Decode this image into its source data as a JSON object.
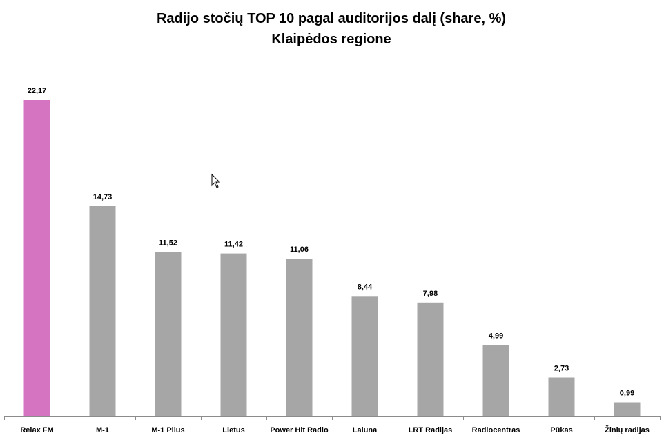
{
  "chart_data": {
    "type": "bar",
    "title": "Radijo stočių TOP 10 pagal auditorijos dalį (share, %)",
    "subtitle": "Klaipėdos regione",
    "categories": [
      "Relax FM",
      "M-1",
      "M-1 Plius",
      "Lietus",
      "Power Hit Radio",
      "Laluna",
      "LRT Radijas",
      "Radiocentras",
      "Pūkas",
      "Žinių radijas"
    ],
    "values": [
      22.17,
      14.73,
      11.52,
      11.42,
      11.06,
      8.44,
      7.98,
      4.99,
      2.73,
      0.99
    ],
    "value_labels": [
      "22,17",
      "14,73",
      "11,52",
      "11,42",
      "11,06",
      "8,44",
      "7,98",
      "4,99",
      "2,73",
      "0,99"
    ],
    "ylim": [
      0,
      22.17
    ],
    "grid": false,
    "legend": "none",
    "colors": {
      "highlight": "#d575c1",
      "default": "#a6a6a6",
      "axis": "#8c8c8c"
    },
    "highlight_index": 0
  }
}
